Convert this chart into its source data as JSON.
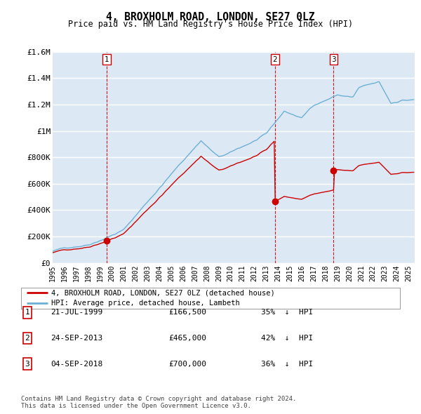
{
  "title": "4, BROXHOLM ROAD, LONDON, SE27 0LZ",
  "subtitle": "Price paid vs. HM Land Registry's House Price Index (HPI)",
  "ylim": [
    0,
    1600000
  ],
  "yticks": [
    0,
    200000,
    400000,
    600000,
    800000,
    1000000,
    1200000,
    1400000,
    1600000
  ],
  "ytick_labels": [
    "£0",
    "£200K",
    "£400K",
    "£600K",
    "£800K",
    "£1M",
    "£1.2M",
    "£1.4M",
    "£1.6M"
  ],
  "bg_color": "#dce9f5",
  "grid_color": "#ffffff",
  "sale_color": "#cc0000",
  "hpi_color": "#6eb0d4",
  "sale_label": "4, BROXHOLM ROAD, LONDON, SE27 0LZ (detached house)",
  "hpi_label": "HPI: Average price, detached house, Lambeth",
  "transactions": [
    {
      "num": 1,
      "date": "21-JUL-1999",
      "price": 166500,
      "pct": "35%",
      "dir": "↓",
      "year_x": 1999.55
    },
    {
      "num": 2,
      "date": "24-SEP-2013",
      "price": 465000,
      "pct": "42%",
      "dir": "↓",
      "year_x": 2013.72
    },
    {
      "num": 3,
      "date": "04-SEP-2018",
      "price": 700000,
      "pct": "36%",
      "dir": "↓",
      "year_x": 2018.67
    }
  ],
  "vline_color": "#cc0000",
  "footnote": "Contains HM Land Registry data © Crown copyright and database right 2024.\nThis data is licensed under the Open Government Licence v3.0.",
  "sale_data": [
    [
      1999.55,
      166500
    ],
    [
      2013.72,
      465000
    ],
    [
      2018.67,
      700000
    ]
  ],
  "xlim": [
    1995.0,
    2025.5
  ],
  "xtick_years": [
    1995,
    1996,
    1997,
    1998,
    1999,
    2000,
    2001,
    2002,
    2003,
    2004,
    2005,
    2006,
    2007,
    2008,
    2009,
    2010,
    2011,
    2012,
    2013,
    2014,
    2015,
    2016,
    2017,
    2018,
    2019,
    2020,
    2021,
    2022,
    2023,
    2024,
    2025
  ]
}
